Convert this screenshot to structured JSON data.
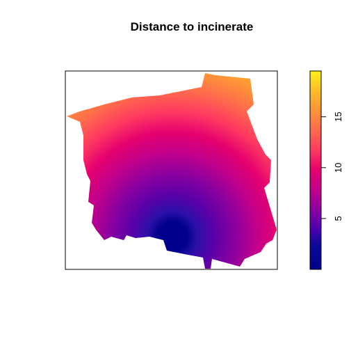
{
  "title": "Distance to incinerate",
  "colors": {
    "frame": "#000000",
    "background": "#ffffff",
    "ramp": [
      "#00008b",
      "#1a0ea0",
      "#5a00a8",
      "#8a00a0",
      "#b8008f",
      "#db007a",
      "#f21e6b",
      "#ff5058",
      "#ff7a46",
      "#ffa133",
      "#ffc824",
      "#fff01a"
    ]
  },
  "legend": {
    "min": 0,
    "max": 19.5,
    "ticks": [
      5,
      10,
      15
    ],
    "tick_labels": [
      "5",
      "10",
      "15"
    ]
  },
  "map": {
    "variable": "distance",
    "source_point": "incinerator (bottom centre of the region)"
  }
}
